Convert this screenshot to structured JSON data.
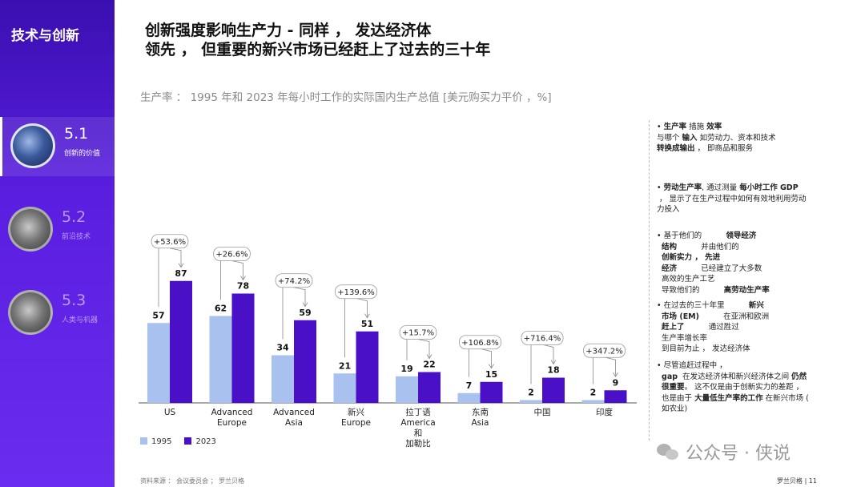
{
  "sidebar": {
    "title": "技术与创新",
    "items": [
      {
        "num": "5.1",
        "label": "创新的价值"
      },
      {
        "num": "5.2",
        "label": "前沿技术"
      },
      {
        "num": "5.3",
        "label": "人类与机器"
      }
    ]
  },
  "headline": {
    "line1": "创新强度影响生产力 - 同样 ， 发达经济体",
    "line2": "领先 ， 但重要的新兴市场已经赶上了过去的三十年"
  },
  "subtitle": "生产率 ： 1995 年和 2023 年每小时工作的实际国内生产总值 [美元购买力平价 ，%]",
  "chart_data": {
    "type": "bar",
    "categories": [
      "US",
      "Advanced Europe",
      "Advanced Asia",
      "新兴 Europe",
      "拉丁语 America 和 加勒比",
      "东南 Asia",
      "中国",
      "印度"
    ],
    "category_lines": [
      [
        "US"
      ],
      [
        "Advanced",
        "Europe"
      ],
      [
        "Advanced",
        "Asia"
      ],
      [
        "新兴",
        "Europe"
      ],
      [
        "拉丁语",
        "America",
        "和",
        "加勒比"
      ],
      [
        "东南",
        "Asia"
      ],
      [
        "中国"
      ],
      [
        "印度"
      ]
    ],
    "series": [
      {
        "name": "1995",
        "values": [
          57,
          62,
          34,
          21,
          19,
          7,
          2,
          2
        ],
        "color": "#a9c1ef"
      },
      {
        "name": "2023",
        "values": [
          87,
          78,
          59,
          51,
          22,
          15,
          18,
          9
        ],
        "color": "#4a10c8"
      }
    ],
    "growth_labels": [
      "+53.6%",
      "+26.6%",
      "+74.2%",
      "+139.6%",
      "+15.7%",
      "+106.8%",
      "+716.4%",
      "+347.2%"
    ],
    "ylim": [
      0,
      100
    ]
  },
  "legend": {
    "a": "1995",
    "b": "2023"
  },
  "notes": [
    {
      "lines": [
        [
          "• ",
          "生产率",
          " 措施 ",
          "效率"
        ],
        [
          "与哪个 ",
          "输入",
          " 如劳动力、资本和技术"
        ],
        [
          "",
          "转换成输出",
          " ， 即商品和服务"
        ]
      ]
    },
    {
      "lines": [
        [
          "• ",
          "劳动生产率",
          ", 通过测量 ",
          "每小时工作 GDP"
        ],
        [
          " ， 显示了在生产过程中如何有效地利用劳动"
        ],
        [
          "力投入"
        ]
      ]
    },
    {
      "lines": [
        [
          "• 基于他们的          ",
          "领导经济"
        ],
        [
          "  ",
          "结构",
          "          并由他们的"
        ],
        [
          "  ",
          "创新实力 ， 先进"
        ],
        [
          "  ",
          "经济",
          "          已经建立了大多数"
        ],
        [
          "  高效的生产工艺"
        ],
        [
          "  导致他们的          ",
          "高劳动生产率"
        ]
      ]
    },
    {
      "lines": [
        [
          "• 在过去的三十年里          ",
          "新兴"
        ],
        [
          "  ",
          "市场 (EM)",
          "          在亚洲和欧洲"
        ],
        [
          "  ",
          "赶上了",
          "          通过胜过"
        ],
        [
          "  生产率增长率"
        ],
        [
          "  到目前为止 ， 发达经济体"
        ]
      ]
    },
    {
      "lines": [
        [
          "• 尽管追赶过程中 ，"
        ],
        [
          "  ",
          "gap",
          "  在发达经济体和新兴经济体之间 ",
          "仍然"
        ],
        [
          "  ",
          "很重要",
          "。 这不仅是由于创新实力的差距 ，"
        ],
        [
          "  也是由于 ",
          "大量低生产率的工作",
          " 在新兴市场 ("
        ],
        [
          "  如农业)"
        ]
      ]
    }
  ],
  "source": "资料来源 ： 会议委员会 ； 罗兰贝格",
  "footer": "罗兰贝格 | 11",
  "watermark": "公众号 · 侠说",
  "colors": {
    "sidebar": "#4a16d0",
    "bar1995": "#a9c1ef",
    "bar2023": "#4a10c8"
  }
}
